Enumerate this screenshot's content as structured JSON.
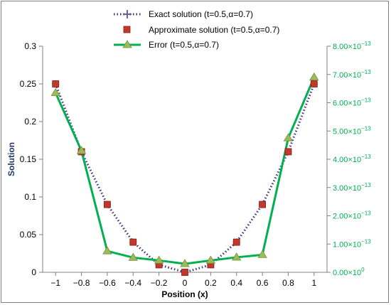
{
  "chart_data": {
    "type": "line",
    "x": [
      -1,
      -0.8,
      -0.6,
      -0.4,
      -0.2,
      0,
      0.2,
      0.4,
      0.6,
      0.8,
      1
    ],
    "xlabel": "Position (x)",
    "ylabel": "Solution",
    "xlim": [
      -1.1,
      1.1
    ],
    "ylim": [
      0,
      0.3
    ],
    "y2lim": [
      0,
      8e-13
    ],
    "x_ticks": [
      "-1",
      "-0.8",
      "-0.6",
      "-0.4",
      "-0.2",
      "0",
      "0.2",
      "0.4",
      "0.6",
      "0.8",
      "1"
    ],
    "y_ticks": [
      "0",
      "0.05",
      "0.1",
      "0.15",
      "0.2",
      "0.25",
      "0.3"
    ],
    "y2_ticks": [
      {
        "mantissa": "0.00",
        "exp": "0"
      },
      {
        "mantissa": "1.00",
        "exp": "-13"
      },
      {
        "mantissa": "2.00",
        "exp": "-13"
      },
      {
        "mantissa": "3.00",
        "exp": "-13"
      },
      {
        "mantissa": "4.00",
        "exp": "-13"
      },
      {
        "mantissa": "5.00",
        "exp": "-13"
      },
      {
        "mantissa": "6.00",
        "exp": "-13"
      },
      {
        "mantissa": "7.00",
        "exp": "-13"
      },
      {
        "mantissa": "8.00",
        "exp": "-13"
      }
    ],
    "legend_position": "top-center",
    "grid": false,
    "series": [
      {
        "name": "Exact solution (t=0.5,α=0.7)",
        "axis": "left",
        "style": "dotted-line",
        "color": "#403080",
        "values": [
          0.25,
          0.16,
          0.09,
          0.04,
          0.01,
          0.0,
          0.01,
          0.04,
          0.09,
          0.16,
          0.25
        ]
      },
      {
        "name": "Approximate solution (t=0.5,α=0.7)",
        "axis": "left",
        "style": "square-markers",
        "color": "#c0392b",
        "values": [
          0.25,
          0.16,
          0.09,
          0.04,
          0.01,
          0.0,
          0.01,
          0.04,
          0.09,
          0.16,
          0.25
        ]
      },
      {
        "name": "Error (t=0.5,α=0.7)",
        "axis": "right",
        "style": "line-triangle",
        "color": "#00b050",
        "marker_color": "#9bbb59",
        "values": [
          6.35e-13,
          4.3e-13,
          7.5e-14,
          5.2e-14,
          4.2e-14,
          3e-14,
          4.2e-14,
          5.3e-14,
          6.2e-14,
          4.75e-13,
          6.9e-13
        ]
      }
    ]
  }
}
